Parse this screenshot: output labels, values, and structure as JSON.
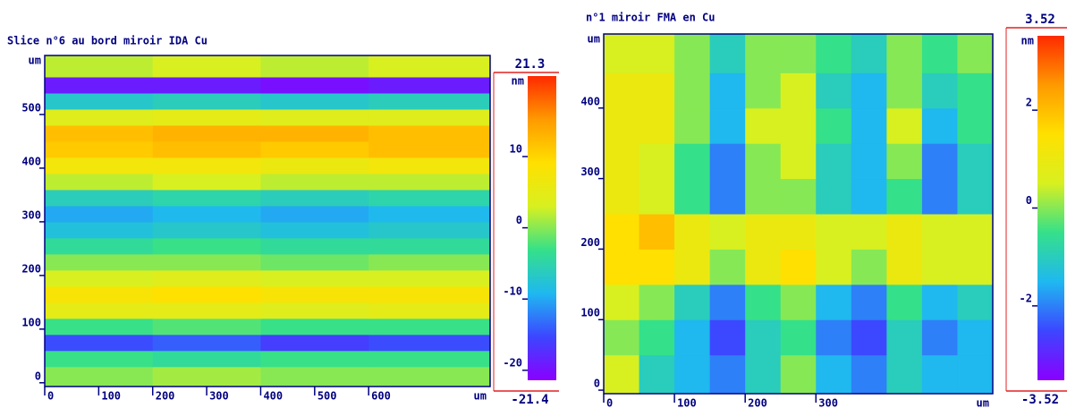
{
  "chart_data": [
    {
      "type": "heatmap",
      "title": "Slice n°6 au bord miroir IDA Cu",
      "x": [
        100,
        300,
        500,
        700
      ],
      "y": [
        15,
        45,
        75,
        105,
        135,
        165,
        195,
        225,
        255,
        285,
        315,
        345,
        375,
        405,
        435,
        465,
        495,
        525,
        555,
        585
      ],
      "z": [
        [
          0,
          1,
          0,
          0
        ],
        [
          -3,
          -4,
          -3,
          -3
        ],
        [
          -15,
          -14,
          -16,
          -15
        ],
        [
          -3,
          -2,
          -3,
          -3
        ],
        [
          5,
          5,
          4,
          5
        ],
        [
          8,
          9,
          8,
          8
        ],
        [
          3,
          4,
          3,
          3
        ],
        [
          0,
          0,
          -1,
          0
        ],
        [
          -4,
          -3,
          -4,
          -4
        ],
        [
          -8,
          -7,
          -8,
          -7
        ],
        [
          -10,
          -9,
          -10,
          -9
        ],
        [
          -6,
          -5,
          -6,
          -5
        ],
        [
          2,
          3,
          2,
          2
        ],
        [
          7,
          7,
          6,
          7
        ],
        [
          11,
          12,
          11,
          12
        ],
        [
          12,
          13,
          13,
          12
        ],
        [
          4,
          5,
          4,
          4
        ],
        [
          -7,
          -6,
          -7,
          -6
        ],
        [
          -19,
          -19,
          -20,
          -19
        ],
        [
          2,
          3,
          2,
          3
        ]
      ],
      "xlim": [
        0,
        825
      ],
      "ylim": [
        -7,
        610
      ],
      "xticks": [
        0,
        100,
        200,
        300,
        400,
        500,
        600
      ],
      "yticks": [
        0,
        100,
        200,
        300,
        400,
        500
      ],
      "axis_unit": "um",
      "colorbar_label": "nm",
      "clim": [
        -21.4,
        21.3
      ],
      "cticks": [
        -20,
        -10,
        0,
        10
      ],
      "colormap": [
        "#8a00ff",
        "#3c46ff",
        "#1fb8f0",
        "#35e08a",
        "#d8f020",
        "#ffe000",
        "#ff9a00",
        "#ff2a00"
      ]
    },
    {
      "type": "heatmap",
      "title": "n°1 miroir FMA en Cu",
      "x": [
        25,
        75,
        125,
        175,
        225,
        275,
        325,
        375,
        425,
        475,
        525
      ],
      "y": [
        25,
        75,
        125,
        175,
        225,
        275,
        325,
        375,
        425,
        475
      ],
      "z": [
        [
          0.5,
          -1,
          -1.5,
          -2,
          -1,
          0,
          -1.5,
          -2,
          -1,
          -1.5,
          -1.5
        ],
        [
          0,
          -0.5,
          -1.5,
          -2.5,
          -1,
          -0.5,
          -2,
          -2.5,
          -1,
          -2,
          -1.5
        ],
        [
          0.5,
          0,
          -1,
          -2,
          -0.5,
          0,
          -1.5,
          -2,
          -0.5,
          -1.5,
          -1
        ],
        [
          1.5,
          1.5,
          1,
          0,
          1,
          1.5,
          0.5,
          0,
          1,
          0.5,
          0.5
        ],
        [
          1.5,
          2,
          1,
          0.5,
          1,
          1,
          0.5,
          0.5,
          1,
          0.5,
          0.5
        ],
        [
          1,
          0.5,
          -0.5,
          -2,
          0,
          0,
          -1,
          -1.5,
          -0.5,
          -2,
          -1
        ],
        [
          1,
          0.5,
          -0.5,
          -2,
          0,
          0.5,
          -1,
          -1.5,
          0,
          -2,
          -1
        ],
        [
          1,
          1,
          0,
          -1.5,
          0.5,
          0.5,
          -0.5,
          -1.5,
          0.5,
          -1.5,
          -0.5
        ],
        [
          1,
          1,
          0,
          -1.5,
          0,
          0.5,
          -1,
          -1.5,
          0,
          -1,
          -0.5
        ],
        [
          0.5,
          0.5,
          0,
          -1,
          0,
          0,
          -0.5,
          -1,
          0,
          -0.5,
          0
        ]
      ],
      "xlim": [
        0,
        550
      ],
      "ylim": [
        -5,
        505
      ],
      "xticks": [
        0,
        100,
        200,
        300
      ],
      "yticks": [
        0,
        100,
        200,
        300,
        400
      ],
      "axis_unit": "um",
      "colorbar_label": "nm",
      "clim": [
        -3.52,
        3.52
      ],
      "cticks": [
        -2,
        0,
        2
      ],
      "colormap": [
        "#8a00ff",
        "#3c46ff",
        "#1fb8f0",
        "#35e08a",
        "#d8f020",
        "#ffe000",
        "#ff9a00",
        "#ff2a00"
      ]
    }
  ]
}
